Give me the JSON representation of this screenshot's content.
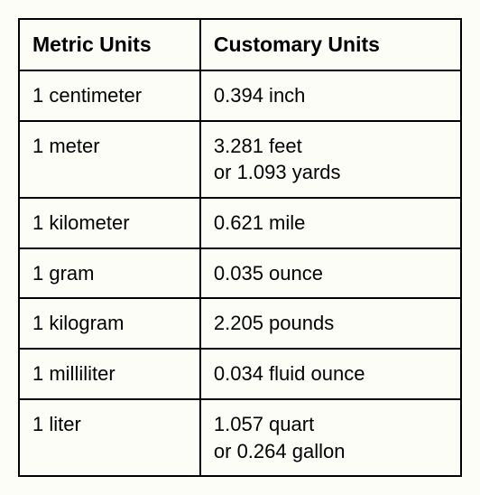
{
  "table": {
    "type": "table",
    "background_color": "#fdfdf8",
    "border_color": "#000000",
    "border_width": 2.5,
    "font_family": "Arial",
    "header_fontsize": 23,
    "cell_fontsize": 22,
    "columns": [
      {
        "label": "Metric Units",
        "width_pct": 41
      },
      {
        "label": "Customary Units",
        "width_pct": 59
      }
    ],
    "rows": [
      {
        "metric": "1 centimeter",
        "customary": "0.394 inch"
      },
      {
        "metric": "1 meter",
        "customary": "3.281 feet\nor 1.093 yards"
      },
      {
        "metric": "1 kilometer",
        "customary": "0.621 mile"
      },
      {
        "metric": "1 gram",
        "customary": "0.035 ounce"
      },
      {
        "metric": "1 kilogram",
        "customary": "2.205 pounds"
      },
      {
        "metric": "1 milliliter",
        "customary": "0.034 fluid ounce"
      },
      {
        "metric": "1 liter",
        "customary": "1.057 quart\nor 0.264 gallon"
      }
    ]
  }
}
